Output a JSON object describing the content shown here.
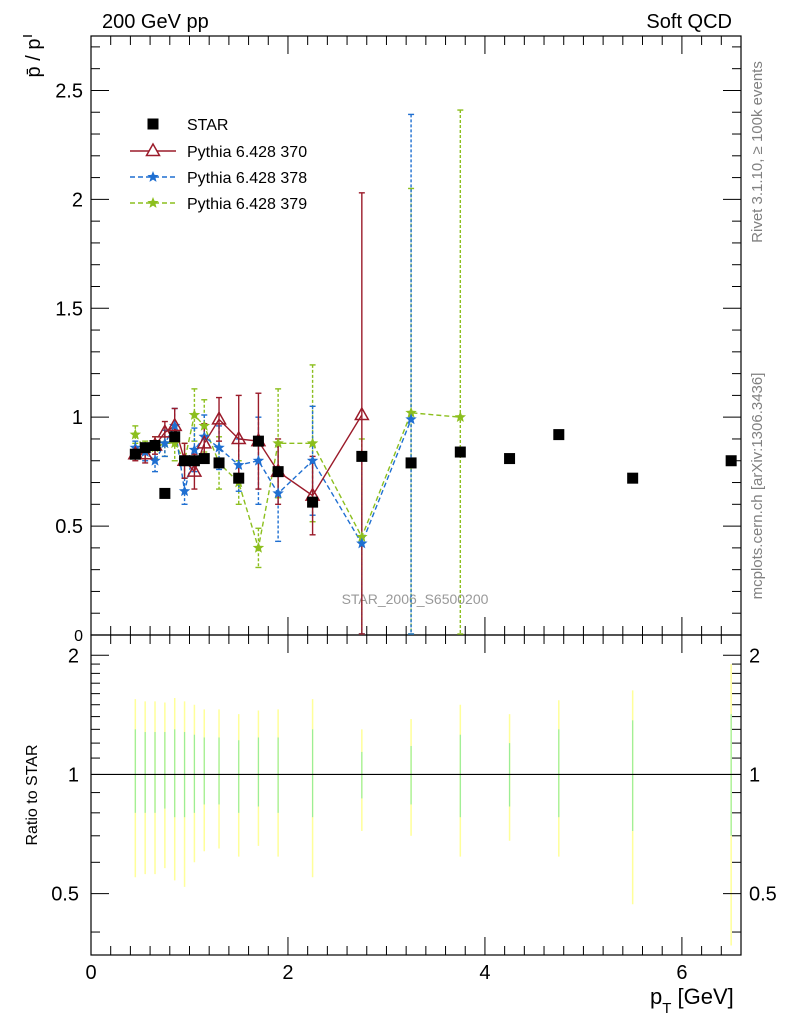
{
  "header": {
    "left_title": "200 GeV pp",
    "right_title": "Soft QCD"
  },
  "side_labels": {
    "rivet": "Rivet 3.1.10, ≥ 100k events",
    "mcplots": "mcplots.cern.ch [arXiv:1306.3436]"
  },
  "watermark": "STAR_2006_S6500200",
  "colors": {
    "star": "#000000",
    "p370": "#9b1b2a",
    "p378": "#1f6fd1",
    "p379": "#8cbf1e",
    "ratio_band_yellow": "#ffff99",
    "ratio_band_green": "#99ee99"
  },
  "chart_data": [
    {
      "type": "scatter",
      "panel": "main",
      "ylabel": "p̄ / p",
      "xlabel": "",
      "xlim": [
        0,
        6.6
      ],
      "ylim": [
        0,
        2.75
      ],
      "yticks": [
        0.5,
        1,
        1.5,
        2,
        2.5
      ],
      "yticklabels": [
        "0.5",
        "1",
        "1.5",
        "2",
        "2.5"
      ],
      "ytick_zero_label": "0",
      "legend_position": "top-left",
      "series": [
        {
          "name": "STAR",
          "marker": "square",
          "x": [
            0.45,
            0.55,
            0.65,
            0.75,
            0.85,
            0.95,
            1.05,
            1.15,
            1.3,
            1.5,
            1.7,
            1.9,
            2.25,
            2.75,
            3.25,
            3.75,
            4.25,
            4.75,
            5.5,
            6.5
          ],
          "y": [
            0.83,
            0.86,
            0.87,
            0.65,
            0.91,
            0.8,
            0.8,
            0.81,
            0.79,
            0.72,
            0.89,
            0.75,
            0.61,
            0.82,
            0.79,
            0.84,
            0.81,
            0.92,
            0.72,
            0.8
          ]
        },
        {
          "name": "Pythia 6.428 370",
          "marker": "open-triangle",
          "line": "solid",
          "x": [
            0.45,
            0.55,
            0.65,
            0.75,
            0.85,
            0.95,
            1.05,
            1.15,
            1.3,
            1.5,
            1.7,
            1.9,
            2.25,
            2.75
          ],
          "y": [
            0.83,
            0.83,
            0.87,
            0.93,
            0.96,
            0.8,
            0.75,
            0.88,
            0.99,
            0.9,
            0.89,
            0.75,
            0.64,
            1.01
          ],
          "err": [
            0.03,
            0.04,
            0.04,
            0.05,
            0.08,
            0.08,
            0.08,
            0.09,
            0.1,
            0.2,
            0.22,
            0.15,
            0.18,
            1.02
          ]
        },
        {
          "name": "Pythia 6.428 378",
          "marker": "star",
          "line": "dashed",
          "x": [
            0.45,
            0.55,
            0.65,
            0.75,
            0.85,
            0.95,
            1.05,
            1.15,
            1.3,
            1.5,
            1.7,
            1.9,
            2.25,
            2.75,
            3.25
          ],
          "y": [
            0.86,
            0.84,
            0.8,
            0.88,
            0.96,
            0.66,
            0.85,
            0.91,
            0.86,
            0.78,
            0.8,
            0.65,
            0.8,
            0.42,
            0.99
          ],
          "err": [
            0.03,
            0.04,
            0.05,
            0.06,
            0.08,
            0.06,
            0.1,
            0.1,
            0.1,
            0.12,
            0.2,
            0.22,
            0.25,
            0.42,
            1.4
          ]
        },
        {
          "name": "Pythia 6.428 379",
          "marker": "star",
          "line": "dashed",
          "x": [
            0.45,
            0.55,
            0.65,
            0.75,
            0.85,
            0.95,
            1.05,
            1.15,
            1.3,
            1.5,
            1.7,
            1.9,
            2.25,
            2.75,
            3.25,
            3.75
          ],
          "y": [
            0.92,
            0.85,
            0.86,
            0.88,
            0.88,
            0.8,
            1.01,
            0.96,
            0.79,
            0.7,
            0.4,
            0.88,
            0.88,
            0.45,
            1.02,
            1.0
          ],
          "err": [
            0.04,
            0.04,
            0.05,
            0.06,
            0.08,
            0.08,
            0.12,
            0.12,
            0.12,
            0.1,
            0.09,
            0.25,
            0.36,
            0.45,
            1.03,
            1.41
          ]
        }
      ]
    },
    {
      "type": "scatter",
      "panel": "ratio",
      "ylabel": "Ratio to STAR",
      "xlabel": "p_T [GeV]",
      "xlim": [
        0,
        6.6
      ],
      "ylim": [
        0.35,
        2.25
      ],
      "yticks": [
        0.5,
        1,
        2
      ],
      "yticklabels": [
        "0.5",
        "1",
        "2"
      ],
      "xticks": [
        0,
        2,
        4,
        6
      ],
      "xticklabels": [
        "0",
        "2",
        "4",
        "6"
      ],
      "bands": {
        "x": [
          0.45,
          0.55,
          0.65,
          0.75,
          0.85,
          0.95,
          1.05,
          1.15,
          1.3,
          1.5,
          1.7,
          1.9,
          2.25,
          2.75,
          3.25,
          3.75,
          4.25,
          4.75,
          5.5,
          6.5
        ],
        "yellow_lo": [
          0.55,
          0.56,
          0.56,
          0.58,
          0.54,
          0.52,
          0.6,
          0.64,
          0.65,
          0.62,
          0.66,
          0.62,
          0.55,
          0.72,
          0.7,
          0.62,
          0.68,
          0.62,
          0.47,
          0.37
        ],
        "yellow_hi": [
          1.55,
          1.53,
          1.53,
          1.52,
          1.56,
          1.53,
          1.5,
          1.46,
          1.46,
          1.42,
          1.45,
          1.46,
          1.55,
          1.3,
          1.38,
          1.5,
          1.42,
          1.54,
          1.63,
          1.9
        ],
        "green_lo": [
          0.8,
          0.8,
          0.8,
          0.82,
          0.78,
          0.78,
          0.8,
          0.84,
          0.84,
          0.8,
          0.83,
          0.8,
          0.78,
          0.87,
          0.84,
          0.78,
          0.83,
          0.78,
          0.72,
          0.7
        ],
        "green_hi": [
          1.3,
          1.28,
          1.28,
          1.28,
          1.3,
          1.28,
          1.26,
          1.24,
          1.24,
          1.22,
          1.24,
          1.24,
          1.3,
          1.14,
          1.18,
          1.26,
          1.2,
          1.3,
          1.37,
          1.42
        ]
      }
    }
  ]
}
